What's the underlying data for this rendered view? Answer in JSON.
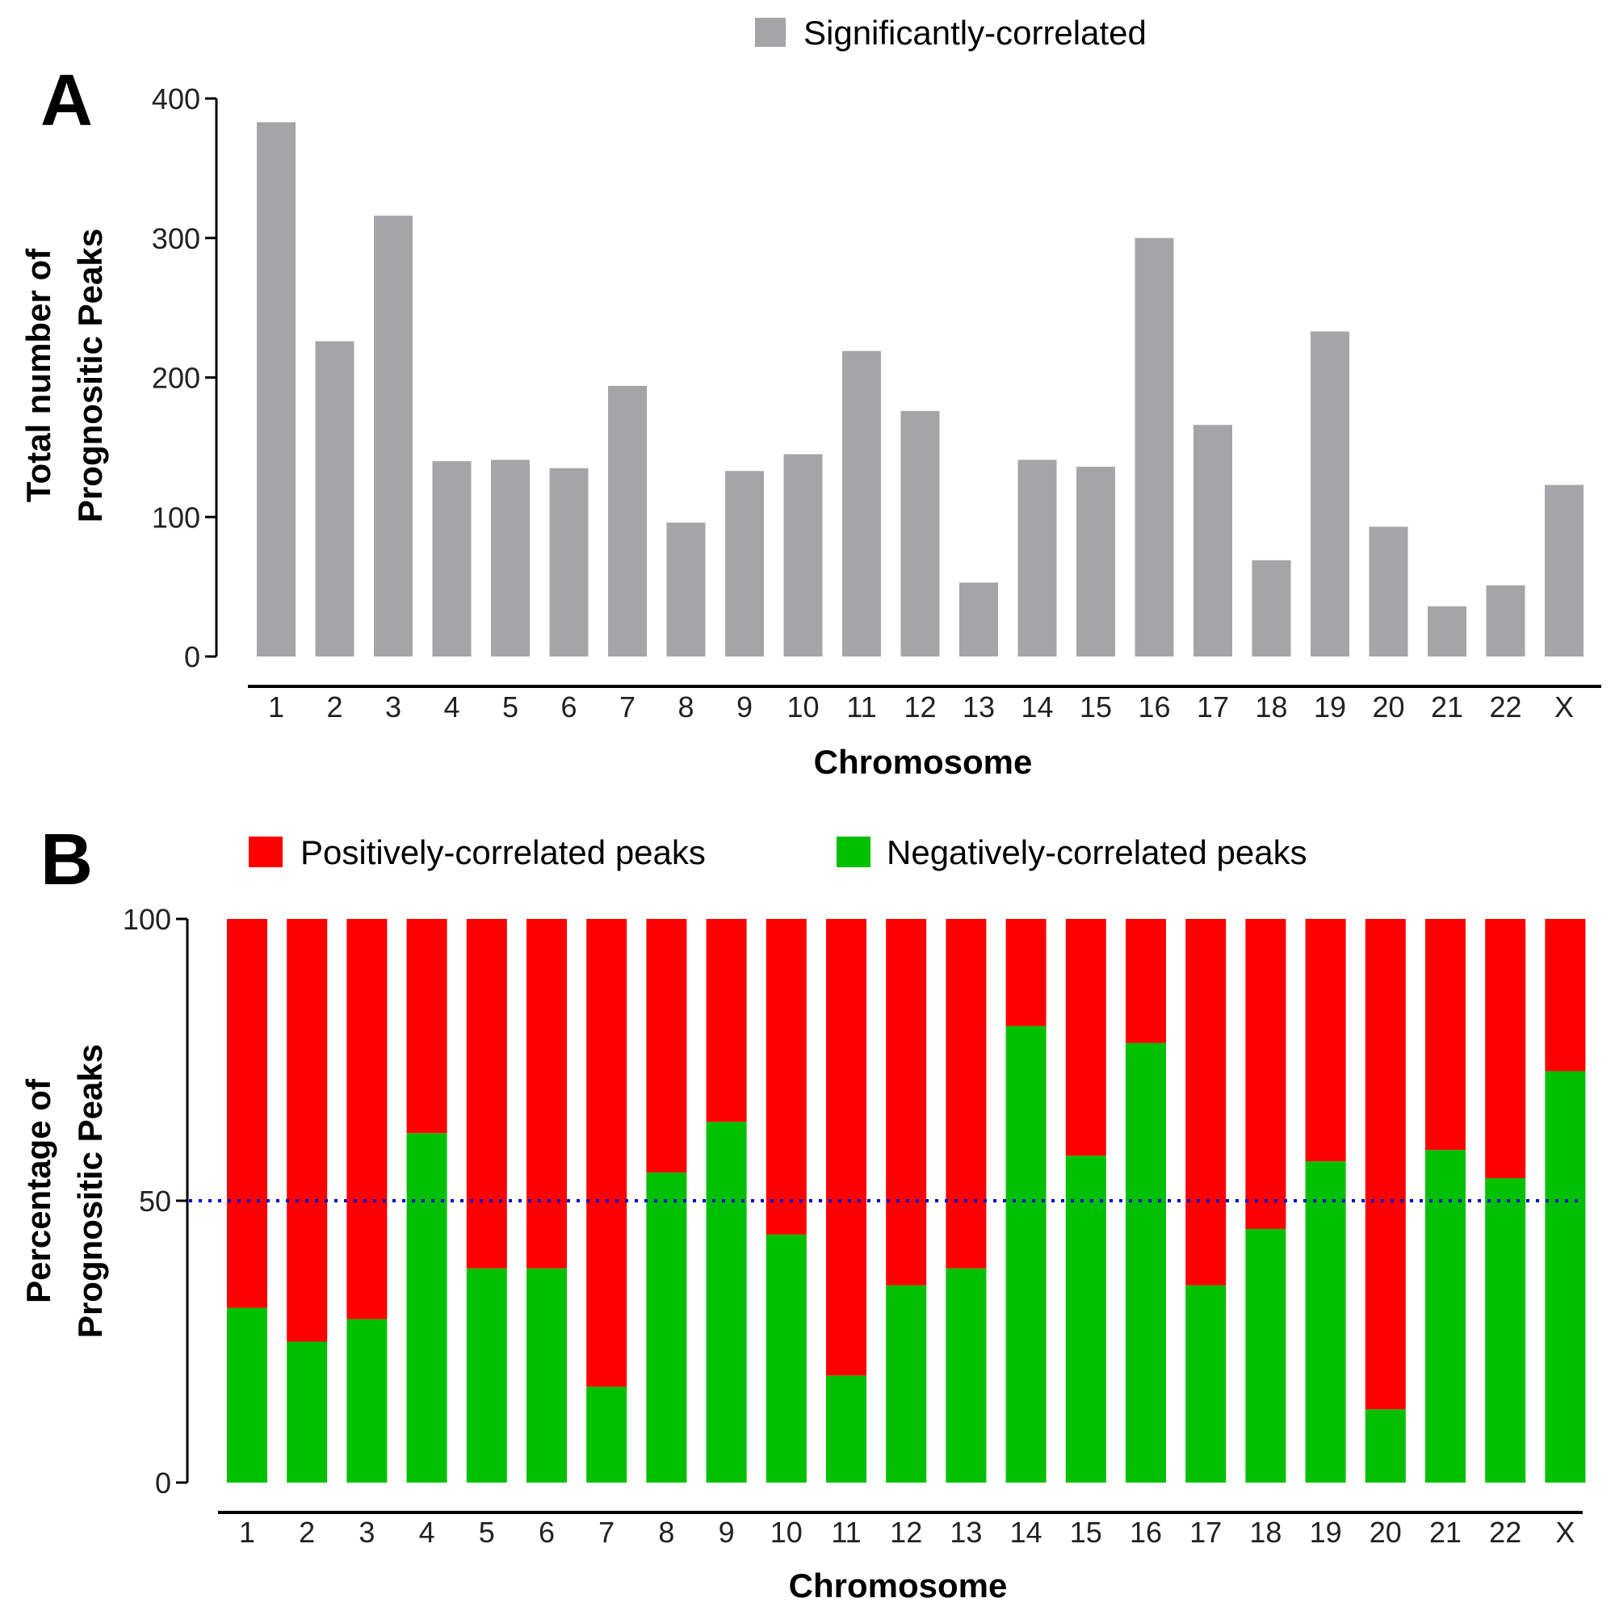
{
  "panel_letters": [
    "A",
    "B"
  ],
  "colors": {
    "gray": "#a5a5a7",
    "red": "#ff0000",
    "green": "#00c000",
    "refline": "#0000cc",
    "axis": "#000000"
  },
  "chart_data": [
    {
      "type": "bar",
      "panel": "A",
      "legend": [
        "Significantly-correlated"
      ],
      "legend_placement": "top",
      "ylabel_lines": [
        "Total number of",
        "Prognositic Peaks"
      ],
      "xlabel": "Chromosome",
      "ylim": [
        0,
        400
      ],
      "yticks": [
        0,
        100,
        200,
        300,
        400
      ],
      "categories": [
        "1",
        "2",
        "3",
        "4",
        "5",
        "6",
        "7",
        "8",
        "9",
        "10",
        "11",
        "12",
        "13",
        "14",
        "15",
        "16",
        "17",
        "18",
        "19",
        "20",
        "21",
        "22",
        "X"
      ],
      "series": [
        {
          "name": "Significantly-correlated",
          "color": "#a5a5a7",
          "values": [
            383,
            226,
            316,
            140,
            141,
            135,
            194,
            96,
            133,
            145,
            219,
            176,
            53,
            141,
            136,
            300,
            166,
            69,
            233,
            93,
            36,
            51,
            123
          ]
        }
      ],
      "grid": false
    },
    {
      "type": "bar",
      "stacked": true,
      "panel": "B",
      "legend": [
        "Positively-correlated peaks",
        "Negatively-correlated peaks"
      ],
      "legend_placement": "top",
      "ylabel_lines": [
        "Percentage of",
        "Prognositic Peaks"
      ],
      "xlabel": "Chromosome",
      "ylim": [
        0,
        100
      ],
      "yticks": [
        0,
        50,
        100
      ],
      "reference_line": 50,
      "categories": [
        "1",
        "2",
        "3",
        "4",
        "5",
        "6",
        "7",
        "8",
        "9",
        "10",
        "11",
        "12",
        "13",
        "14",
        "15",
        "16",
        "17",
        "18",
        "19",
        "20",
        "21",
        "22",
        "X"
      ],
      "series": [
        {
          "name": "Negatively-correlated peaks",
          "color": "#00c000",
          "values": [
            31,
            25,
            29,
            62,
            38,
            38,
            17,
            55,
            64,
            44,
            19,
            35,
            38,
            81,
            58,
            78,
            35,
            45,
            57,
            13,
            59,
            54,
            73
          ]
        },
        {
          "name": "Positively-correlated peaks",
          "color": "#ff0000",
          "values": [
            69,
            75,
            71,
            38,
            62,
            62,
            83,
            45,
            36,
            56,
            81,
            65,
            62,
            19,
            42,
            22,
            65,
            55,
            43,
            87,
            41,
            46,
            27
          ]
        }
      ],
      "grid": false
    }
  ]
}
